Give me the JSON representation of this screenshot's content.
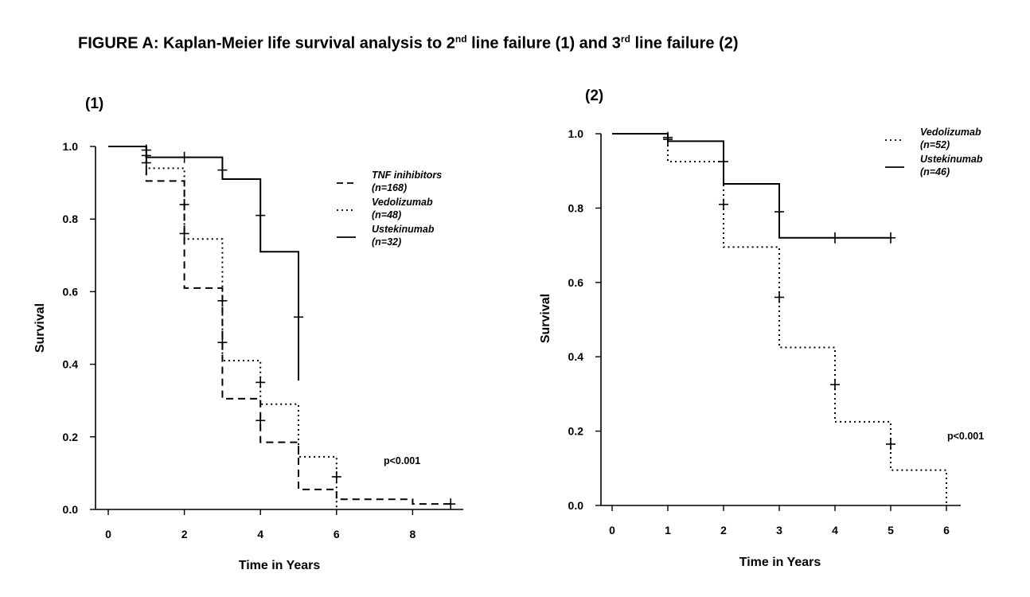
{
  "figure": {
    "title_main": "FIGURE A: Kaplan-Meier life survival analysis to 2",
    "title_sup1": "nd",
    "title_mid": " line failure (1) and 3",
    "title_sup2": "rd",
    "title_end": " line failure (2)"
  },
  "chart_data": [
    {
      "type": "line",
      "step": true,
      "panel_label": "(1)",
      "xlabel": "Time in Years",
      "ylabel": "Survival",
      "xlim": [
        0,
        9
      ],
      "ylim": [
        0,
        1
      ],
      "xticks": [
        0,
        2,
        4,
        6,
        8
      ],
      "yticks": [
        0.0,
        0.2,
        0.4,
        0.6,
        0.8,
        1.0
      ],
      "ytick_labels": [
        "0.0",
        "0.2",
        "0.4",
        "0.6",
        "0.8",
        "1.0"
      ],
      "annotation": "p<0.001",
      "grid": false,
      "legend_position": "top-right",
      "series": [
        {
          "name": "TNF inihibitors",
          "n_label": "(n=168)",
          "linestyle": "dashed",
          "steps": [
            [
              0,
              1.0
            ],
            [
              1,
              0.905
            ],
            [
              2,
              0.61
            ],
            [
              3,
              0.305
            ],
            [
              4,
              0.185
            ],
            [
              5,
              0.055
            ],
            [
              6,
              0.028
            ],
            [
              8,
              0.015
            ],
            [
              9,
              0.015
            ]
          ],
          "censor": [
            [
              1,
              0.975
            ],
            [
              2,
              0.84
            ],
            [
              3,
              0.575
            ],
            [
              4,
              0.245
            ],
            [
              9,
              0.015
            ]
          ]
        },
        {
          "name": "Vedolizumab",
          "n_label": "(n=48)",
          "linestyle": "dotted",
          "steps": [
            [
              0,
              1.0
            ],
            [
              1,
              0.94
            ],
            [
              2,
              0.745
            ],
            [
              3,
              0.41
            ],
            [
              4,
              0.29
            ],
            [
              5,
              0.145
            ],
            [
              6,
              0.0
            ]
          ],
          "censor": [
            [
              1,
              0.955
            ],
            [
              2,
              0.76
            ],
            [
              3,
              0.46
            ],
            [
              4,
              0.35
            ],
            [
              6,
              0.09
            ]
          ]
        },
        {
          "name": "Ustekinumab",
          "n_label": "(n=32)",
          "linestyle": "solid",
          "steps": [
            [
              0,
              1.0
            ],
            [
              1,
              0.97
            ],
            [
              3,
              0.91
            ],
            [
              4,
              0.71
            ],
            [
              5,
              0.355
            ]
          ],
          "censor": [
            [
              1,
              0.99
            ],
            [
              2,
              0.97
            ],
            [
              3,
              0.935
            ],
            [
              4,
              0.81
            ],
            [
              5,
              0.53
            ]
          ]
        }
      ]
    },
    {
      "type": "line",
      "step": true,
      "panel_label": "(2)",
      "xlabel": "Time in Years",
      "ylabel": "Survival",
      "xlim": [
        0,
        6
      ],
      "ylim": [
        0,
        1
      ],
      "xticks": [
        0,
        1,
        2,
        3,
        4,
        5,
        6
      ],
      "yticks": [
        0.0,
        0.2,
        0.4,
        0.6,
        0.8,
        1.0
      ],
      "ytick_labels": [
        "0.0",
        "0.2",
        "0.4",
        "0.6",
        "0.8",
        "1.0"
      ],
      "annotation": "p<0.001",
      "grid": false,
      "legend_position": "top-right",
      "series": [
        {
          "name": "Vedolizumab",
          "n_label": "(n=52)",
          "linestyle": "dotted",
          "steps": [
            [
              0,
              1.0
            ],
            [
              1,
              0.925
            ],
            [
              2,
              0.695
            ],
            [
              3,
              0.425
            ],
            [
              4,
              0.225
            ],
            [
              5,
              0.095
            ],
            [
              6,
              0.0
            ]
          ],
          "censor": [
            [
              1,
              0.99
            ],
            [
              2,
              0.81
            ],
            [
              3,
              0.56
            ],
            [
              4,
              0.325
            ],
            [
              5,
              0.165
            ]
          ]
        },
        {
          "name": "Ustekinumab",
          "n_label": "(n=46)",
          "linestyle": "solid",
          "steps": [
            [
              0,
              1.0
            ],
            [
              1,
              0.98
            ],
            [
              2,
              0.865
            ],
            [
              3,
              0.72
            ],
            [
              5,
              0.72
            ]
          ],
          "censor": [
            [
              1,
              0.985
            ],
            [
              2,
              0.925
            ],
            [
              3,
              0.79
            ],
            [
              4,
              0.72
            ],
            [
              5,
              0.72
            ]
          ]
        }
      ]
    }
  ]
}
